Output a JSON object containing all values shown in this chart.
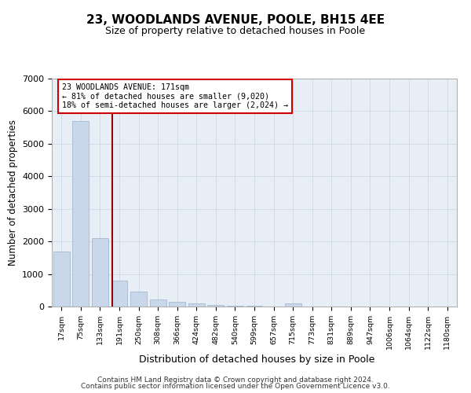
{
  "title1": "23, WOODLANDS AVENUE, POOLE, BH15 4EE",
  "title2": "Size of property relative to detached houses in Poole",
  "xlabel": "Distribution of detached houses by size in Poole",
  "ylabel": "Number of detached properties",
  "categories": [
    "17sqm",
    "75sqm",
    "133sqm",
    "191sqm",
    "250sqm",
    "308sqm",
    "366sqm",
    "424sqm",
    "482sqm",
    "540sqm",
    "599sqm",
    "657sqm",
    "715sqm",
    "773sqm",
    "831sqm",
    "889sqm",
    "947sqm",
    "1006sqm",
    "1064sqm",
    "1122sqm",
    "1180sqm"
  ],
  "values": [
    1700,
    5700,
    2100,
    800,
    450,
    210,
    150,
    100,
    60,
    35,
    30,
    5,
    90,
    0,
    0,
    0,
    0,
    0,
    0,
    0,
    0
  ],
  "bar_color": "#c8d8ea",
  "bar_edge_color": "#9ab0c8",
  "vline_x_index": 2.65,
  "vline_color": "#990000",
  "annotation_text": "23 WOODLANDS AVENUE: 171sqm\n← 81% of detached houses are smaller (9,020)\n18% of semi-detached houses are larger (2,024) →",
  "annotation_box_color": "#ffffff",
  "annotation_box_edge": "#cc0000",
  "ylim": [
    0,
    7000
  ],
  "yticks": [
    0,
    1000,
    2000,
    3000,
    4000,
    5000,
    6000,
    7000
  ],
  "grid_color": "#cdd8e8",
  "background_color": "#e8eef6",
  "footer1": "Contains HM Land Registry data © Crown copyright and database right 2024.",
  "footer2": "Contains public sector information licensed under the Open Government Licence v3.0."
}
